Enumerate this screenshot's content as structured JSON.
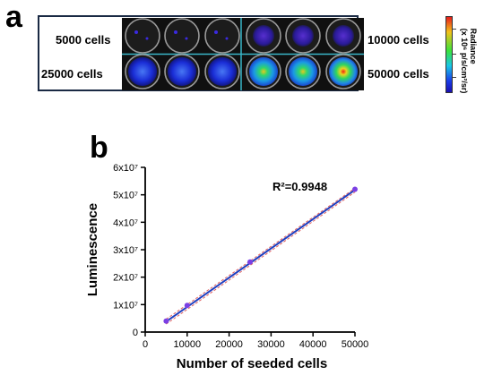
{
  "panel_a": {
    "letter": "a",
    "labels": {
      "top_left": "5000 cells",
      "top_right": "10000 cells",
      "bottom_left": "25000 cells",
      "bottom_right": "50000 cells"
    },
    "colorbar": {
      "title": "Radiance",
      "unit_line": "(x 10⁶ p/s/cm²/sr)"
    },
    "colors": {
      "border": "#1a2a44",
      "divider": "#39b6c8",
      "well_bg": "#101010"
    }
  },
  "panel_b": {
    "letter": "b",
    "annotation": "R²=0.9948"
  },
  "chart_data": {
    "type": "scatter",
    "title": "",
    "xlabel": "Number of seeded cells",
    "ylabel": "Luminescence",
    "xlim": [
      0,
      50000
    ],
    "ylim": [
      0,
      60000000
    ],
    "xticks": [
      "0",
      "10000",
      "20000",
      "30000",
      "40000",
      "50000"
    ],
    "yticks": [
      "0",
      "1x10⁷",
      "2x10⁷",
      "3x10⁷",
      "4x10⁷",
      "5x10⁷",
      "6x10⁷"
    ],
    "x": [
      5000,
      10000,
      25000,
      50000
    ],
    "y": [
      4000000,
      9700000,
      25500000,
      52000000
    ],
    "fit_line": {
      "x": [
        5000,
        50000
      ],
      "y": [
        3800000,
        51800000
      ]
    },
    "confidence_upper": {
      "x": [
        5000,
        50000
      ],
      "y": [
        4700000,
        52400000
      ]
    },
    "confidence_lower": {
      "x": [
        5000,
        50000
      ],
      "y": [
        2900000,
        51000000
      ]
    },
    "colors": {
      "points": "#7b3fe4",
      "fit": "#1f3fbf",
      "ci": "#e06060"
    }
  }
}
